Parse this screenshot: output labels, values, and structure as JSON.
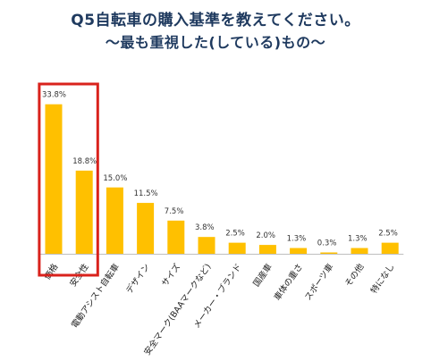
{
  "title_line1": "Q5自転車の購入基準を教えてください。",
  "title_line2": "～最も重視した(している)もの～",
  "colors": {
    "bar": "#FFC000",
    "highlight": "#D9221C",
    "axis": "#BFBFBF"
  },
  "chart_data": {
    "type": "bar",
    "title": "Q5自転車の購入基準を教えてください。 ～最も重視した(している)もの～",
    "xlabel": "",
    "ylabel": "",
    "ylim": [
      0,
      35
    ],
    "grid": false,
    "categories": [
      "価格",
      "安全性",
      "電動アシスト自転車",
      "デザイン",
      "サイズ",
      "安全マーク(BAAマークなど)",
      "メーカー・ブランド",
      "国産車",
      "車体の重さ",
      "スポーツ車",
      "その他",
      "特になし"
    ],
    "values": [
      33.8,
      18.8,
      15.0,
      11.5,
      7.5,
      3.8,
      2.5,
      2.0,
      1.3,
      0.3,
      1.3,
      2.5
    ],
    "value_labels": [
      "33.8%",
      "18.8%",
      "15.0%",
      "11.5%",
      "7.5%",
      "3.8%",
      "2.5%",
      "2.0%",
      "1.3%",
      "0.3%",
      "1.3%",
      "2.5%"
    ],
    "highlighted_categories": [
      "価格",
      "安全性"
    ]
  }
}
